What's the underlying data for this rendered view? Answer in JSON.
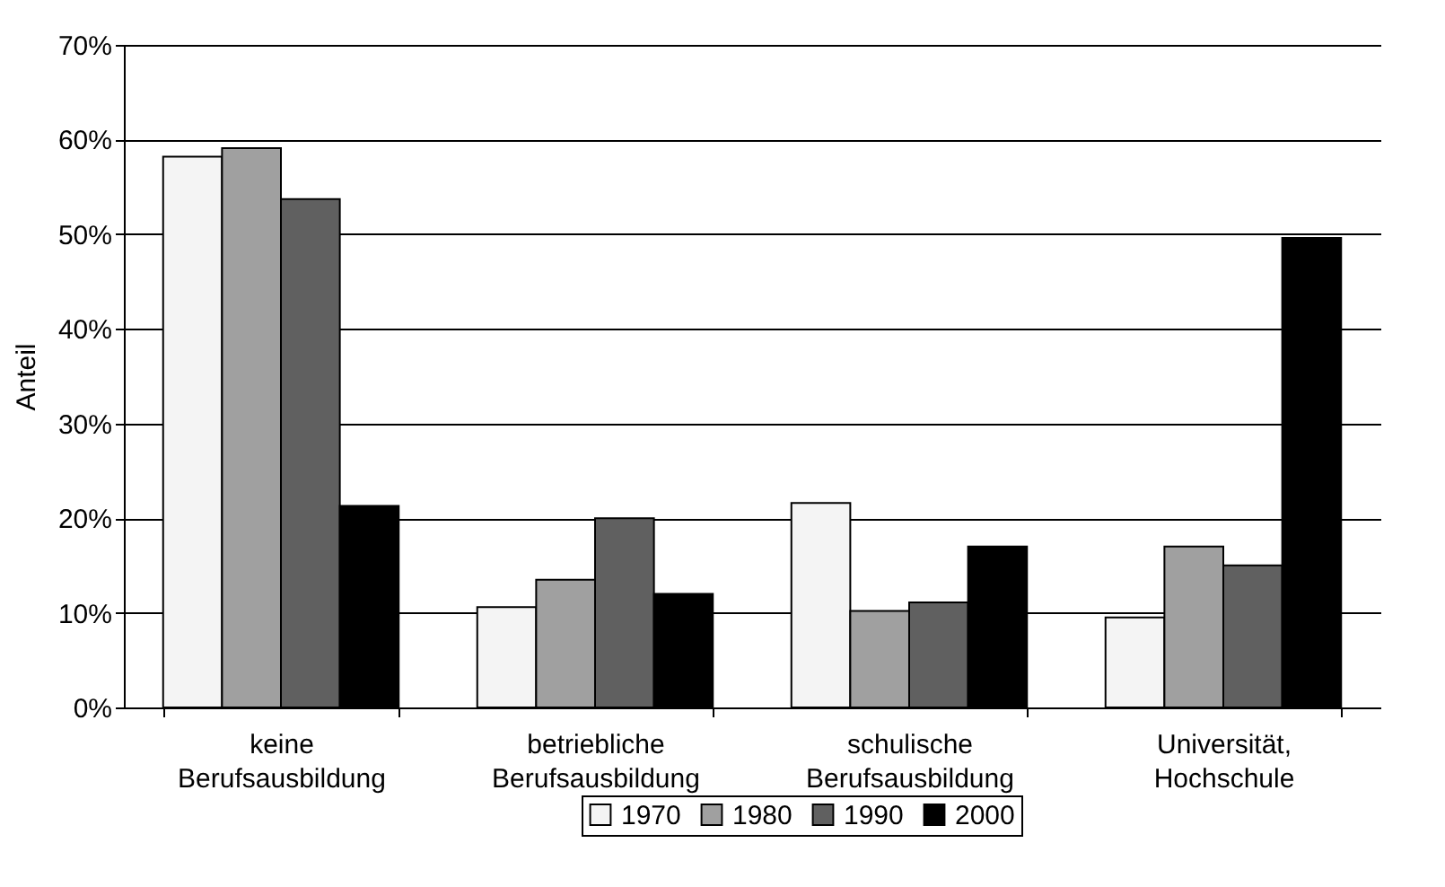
{
  "chart_data": {
    "type": "bar",
    "ylabel": "Anteil",
    "categories": [
      "keine Berufsausbildung",
      "betriebliche Berufsausbildung",
      "schulische Berufsausbildung",
      "Universität, Hochschule"
    ],
    "series": [
      {
        "name": "1970",
        "color": "#f4f4f4",
        "values": [
          58.2,
          10.6,
          21.6,
          9.5
        ]
      },
      {
        "name": "1980",
        "color": "#a0a0a0",
        "values": [
          59.1,
          13.5,
          10.2,
          17.0
        ]
      },
      {
        "name": "1990",
        "color": "#606060",
        "values": [
          53.7,
          20.0,
          11.1,
          15.0
        ]
      },
      {
        "name": "2000",
        "color": "#000000",
        "values": [
          21.3,
          12.0,
          17.0,
          49.6
        ]
      }
    ],
    "ylim": [
      0,
      70
    ],
    "yticks": [
      {
        "value": 0,
        "label": "0%"
      },
      {
        "value": 10,
        "label": "10%"
      },
      {
        "value": 20,
        "label": "20%"
      },
      {
        "value": 30,
        "label": "30%"
      },
      {
        "value": 40,
        "label": "40%"
      },
      {
        "value": 50,
        "label": "50%"
      },
      {
        "value": 60,
        "label": "60%"
      },
      {
        "value": 70,
        "label": "70%"
      }
    ],
    "grid": "y",
    "legend": "bottom"
  }
}
